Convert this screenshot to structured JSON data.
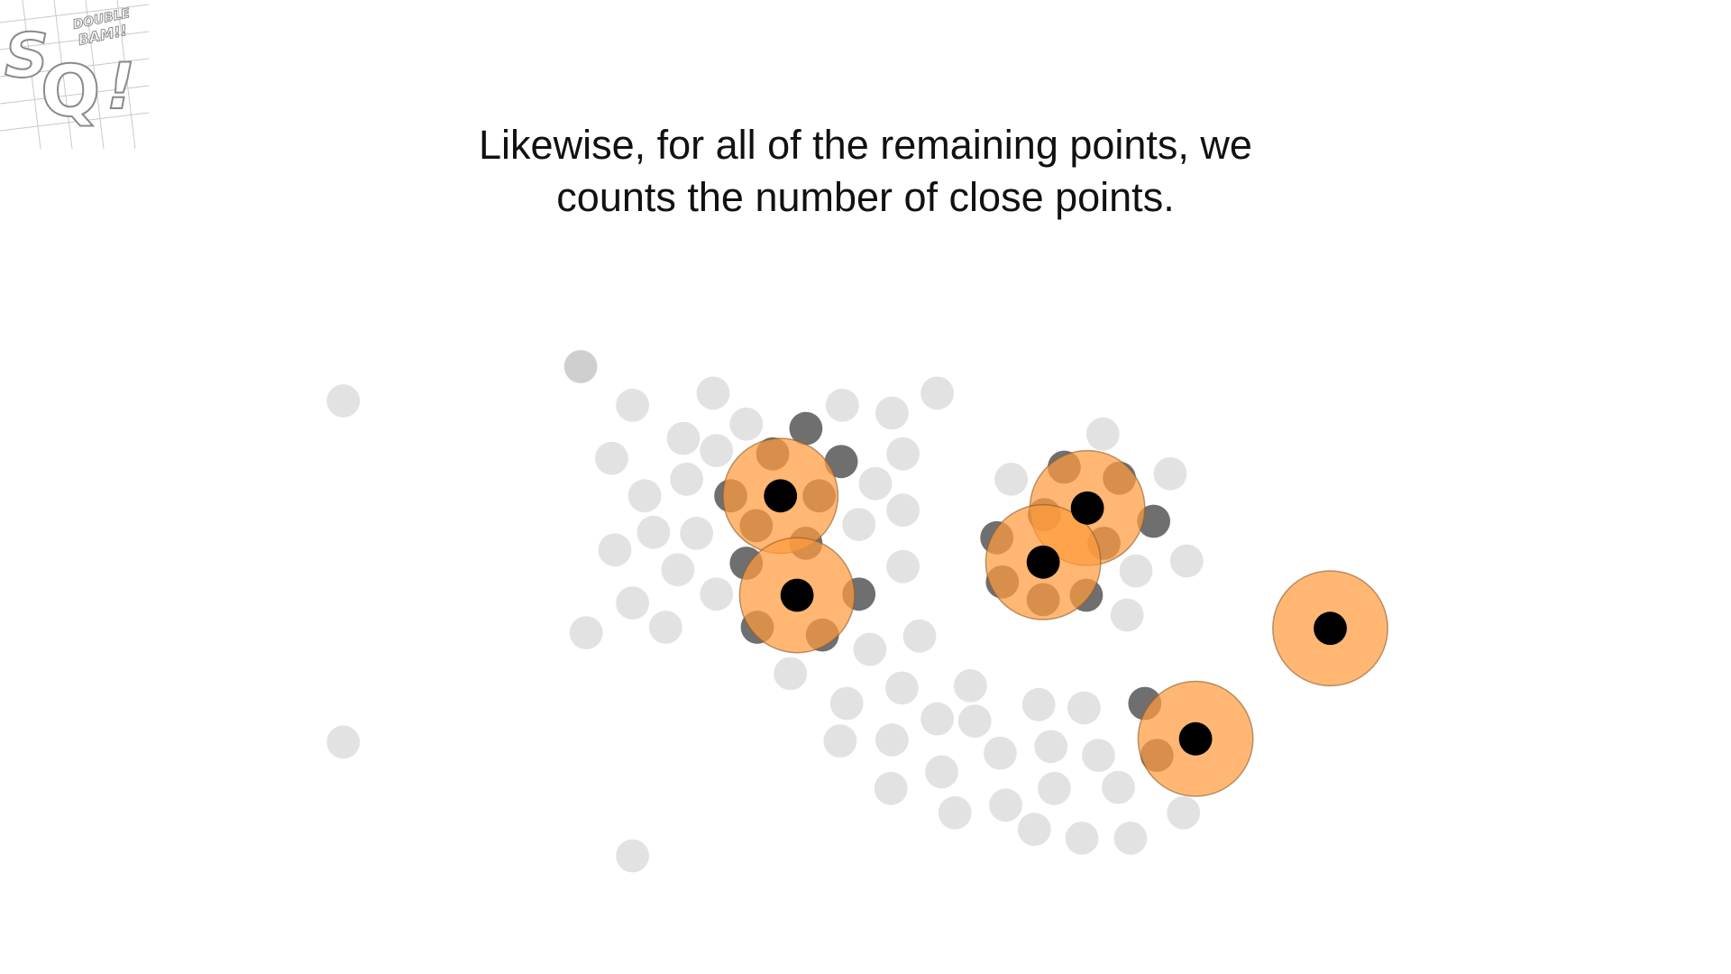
{
  "logo": {
    "big_letters": "SQ!",
    "small_text_1": "DOUBLE",
    "small_text_2": "BAM!!"
  },
  "caption": {
    "line1": "Likewise, for all of the remaining points, we",
    "line2": "counts the number of close points."
  },
  "colors": {
    "faint_point": "#e2e2e2",
    "dark_point": "#6f6f6f",
    "core_point": "#000000",
    "neighborhood_fill": "#ff9b3d",
    "neighborhood_stroke": "#8a5a2b"
  }
}
